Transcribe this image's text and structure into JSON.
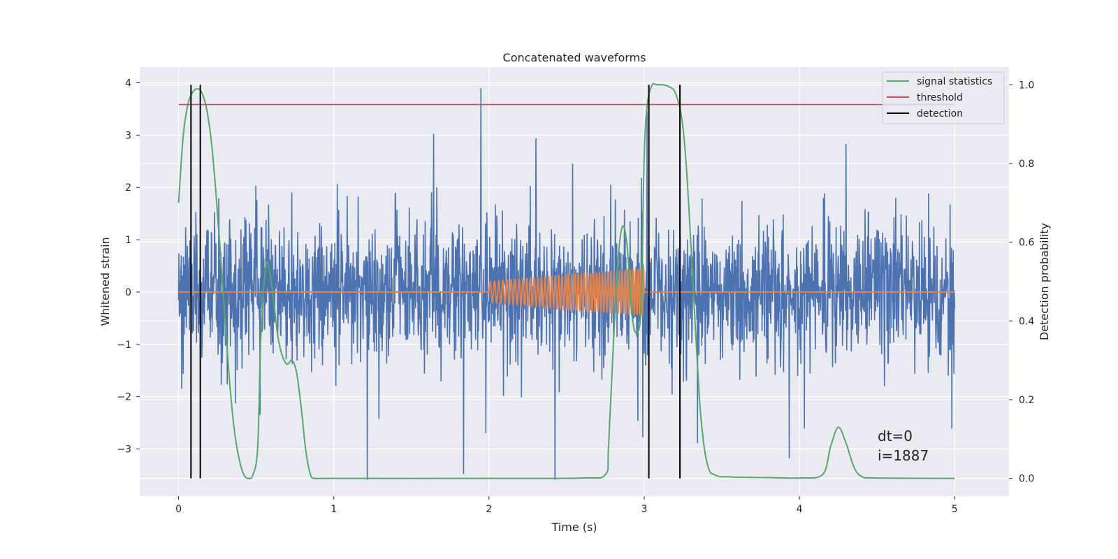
{
  "chart_data": {
    "type": "line",
    "title": "Concatenated waveforms",
    "xlabel": "Time (s)",
    "ylabel": "Whitened strain",
    "y2label": "Detection probability",
    "xlim": [
      -0.25,
      5.35
    ],
    "ylim": [
      -3.9,
      4.3
    ],
    "y2lim": [
      -0.045,
      1.045
    ],
    "xticks": [
      0,
      1,
      2,
      3,
      4,
      5
    ],
    "xtick_labels": [
      "0",
      "1",
      "2",
      "3",
      "4",
      "5"
    ],
    "yticks": [
      -3,
      -2,
      -1,
      0,
      1,
      2,
      3,
      4
    ],
    "ytick_labels": [
      "−3",
      "−2",
      "−1",
      "0",
      "1",
      "2",
      "3",
      "4"
    ],
    "y2ticks": [
      0.0,
      0.2,
      0.4,
      0.6,
      0.8,
      1.0
    ],
    "y2tick_labels": [
      "0.0",
      "0.2",
      "0.4",
      "0.6",
      "0.8",
      "1.0"
    ],
    "grid": true,
    "legend_position": "top-right",
    "noise": {
      "x_range": [
        0,
        5
      ],
      "typical_amplitude": 1.5,
      "peak_amplitude": 3.9,
      "color": "#4c72b0"
    },
    "injected_signal": {
      "x_range": [
        2.0,
        3.0
      ],
      "amplitude_start": 0.2,
      "amplitude_end": 0.45,
      "freq_start_hz": 35,
      "freq_end_hz": 60,
      "color": "#dd8452"
    },
    "series": [
      {
        "name": "signal statistics",
        "color": "#55a868",
        "axis": "right",
        "x": [
          0.0,
          0.03,
          0.06,
          0.09,
          0.12,
          0.15,
          0.18,
          0.21,
          0.24,
          0.27,
          0.3,
          0.33,
          0.36,
          0.39,
          0.42,
          0.45,
          0.48,
          0.51,
          0.53,
          0.56,
          0.58,
          0.61,
          0.64,
          0.67,
          0.7,
          0.73,
          0.76,
          0.79,
          0.82,
          0.85,
          0.88,
          1.0,
          2.0,
          2.6,
          2.75,
          2.77,
          2.8,
          2.83,
          2.86,
          2.89,
          2.92,
          2.95,
          2.98,
          3.0,
          3.02,
          3.05,
          3.08,
          3.12,
          3.16,
          3.2,
          3.24,
          3.27,
          3.3,
          3.33,
          3.36,
          3.39,
          3.42,
          3.45,
          3.48,
          3.51,
          3.55,
          3.6,
          3.8,
          4.0,
          4.15,
          4.2,
          4.25,
          4.3,
          4.35,
          4.4,
          4.5,
          5.0
        ],
        "y": [
          0.7,
          0.87,
          0.95,
          0.98,
          0.99,
          0.98,
          0.94,
          0.86,
          0.73,
          0.57,
          0.4,
          0.24,
          0.12,
          0.05,
          0.01,
          0.0,
          0.01,
          0.08,
          0.36,
          0.53,
          0.54,
          0.46,
          0.36,
          0.31,
          0.29,
          0.3,
          0.27,
          0.18,
          0.07,
          0.01,
          0.0,
          0.0,
          0.0,
          0.001,
          0.01,
          0.08,
          0.33,
          0.55,
          0.64,
          0.59,
          0.42,
          0.37,
          0.44,
          0.82,
          0.95,
          0.999,
          1.0,
          1.0,
          0.995,
          0.98,
          0.92,
          0.8,
          0.6,
          0.38,
          0.18,
          0.07,
          0.02,
          0.01,
          0.005,
          0.004,
          0.004,
          0.003,
          0.002,
          0.001,
          0.01,
          0.08,
          0.13,
          0.09,
          0.03,
          0.005,
          0.001,
          0.0
        ]
      },
      {
        "name": "threshold",
        "color": "#c44e52",
        "axis": "right",
        "x": [
          0.0,
          5.0
        ],
        "y": [
          0.95,
          0.95
        ]
      },
      {
        "name": "detection",
        "color": "#000000",
        "axis": "right",
        "type": "vlines",
        "x": [
          0.08,
          0.14,
          3.03,
          3.23
        ],
        "y_range": [
          0.0,
          1.0
        ]
      }
    ],
    "annotations": [
      "dt=0",
      "i=1887"
    ]
  }
}
